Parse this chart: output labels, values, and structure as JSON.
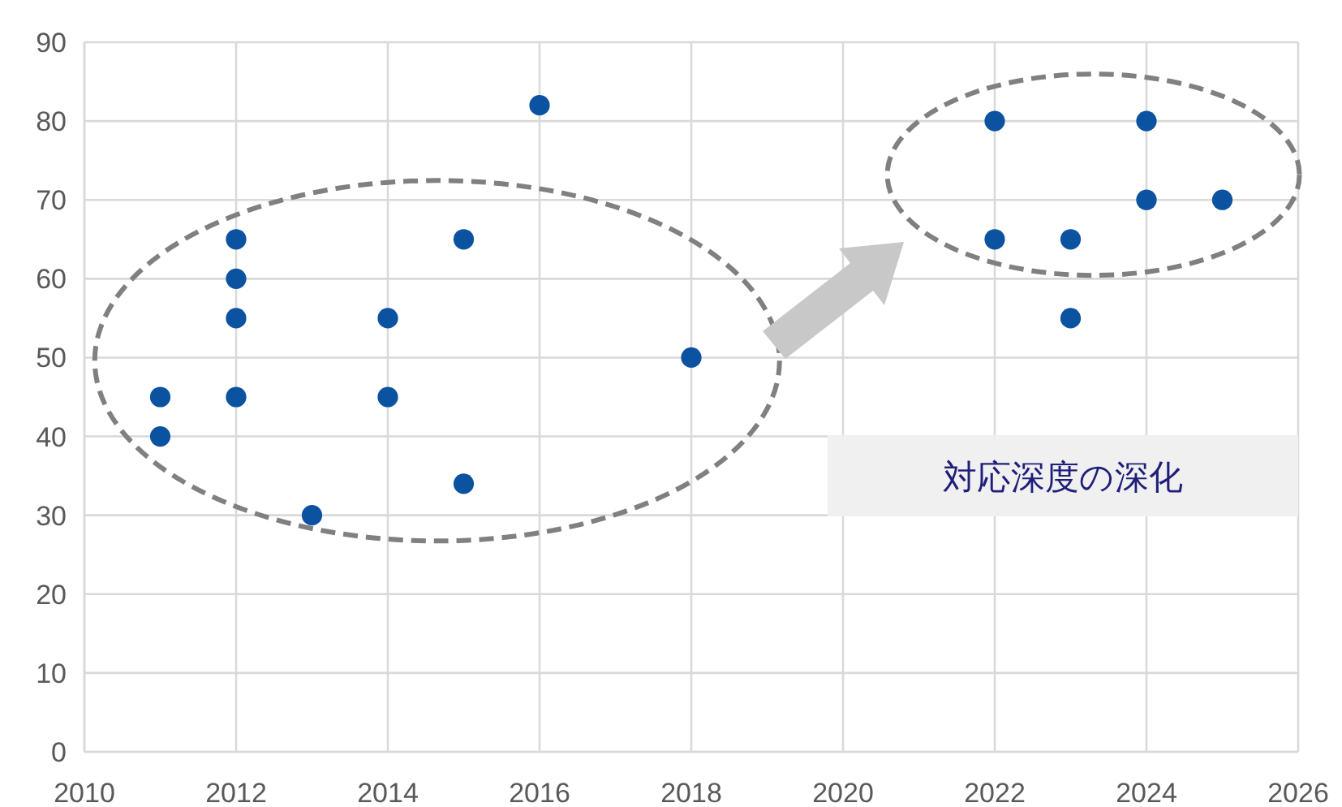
{
  "chart_data": {
    "type": "scatter",
    "x": [
      2011,
      2011,
      2012,
      2012,
      2012,
      2012,
      2013,
      2014,
      2014,
      2015,
      2015,
      2016,
      2018,
      2022,
      2022,
      2023,
      2023,
      2024,
      2024,
      2025
    ],
    "values": [
      45,
      40,
      65,
      60,
      55,
      45,
      30,
      55,
      45,
      65,
      34,
      82,
      50,
      80,
      65,
      65,
      55,
      80,
      70,
      70
    ],
    "color": "#0b52a0",
    "marker": "circle",
    "xlim": [
      2010,
      2026
    ],
    "xticks": [
      2010,
      2012,
      2014,
      2016,
      2018,
      2020,
      2022,
      2024,
      2026
    ],
    "ylim": [
      0,
      90
    ],
    "yticks": [
      0,
      10,
      20,
      30,
      40,
      50,
      60,
      70,
      80,
      90
    ],
    "grid": true,
    "annotations": [
      "対応深度の深化"
    ]
  }
}
